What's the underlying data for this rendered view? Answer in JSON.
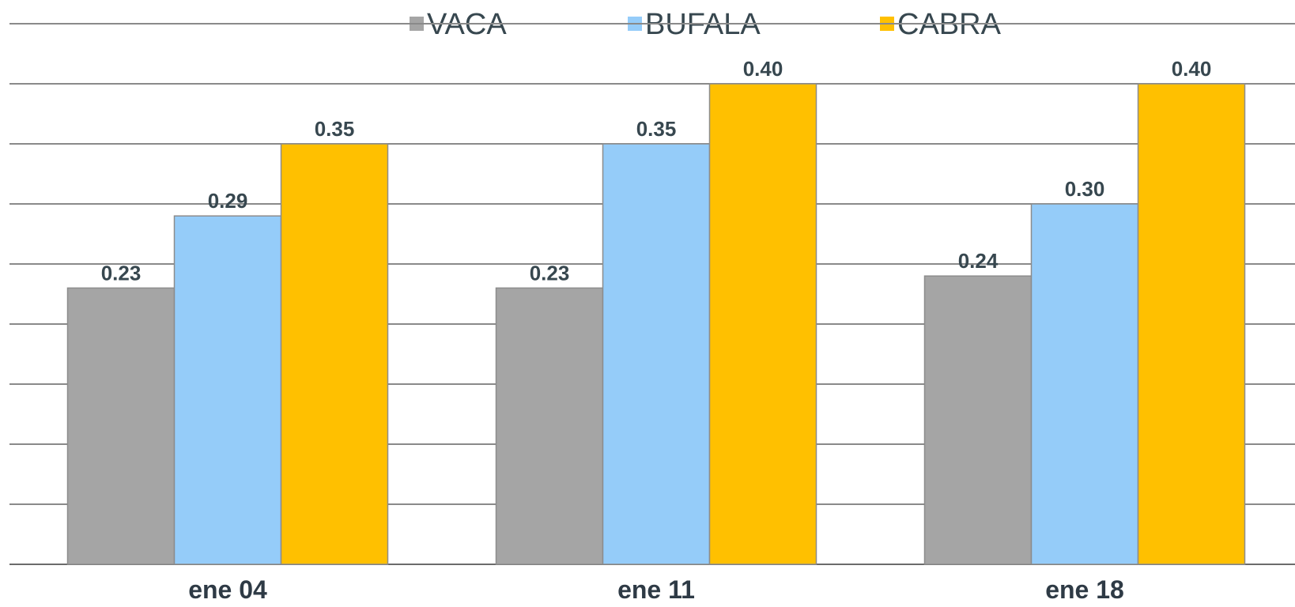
{
  "chart_data": {
    "type": "bar",
    "categories": [
      "ene 04",
      "ene 11",
      "ene 18"
    ],
    "series": [
      {
        "name": "VACA",
        "values": [
          0.23,
          0.23,
          0.24
        ],
        "labels": [
          "0.23",
          "0.23",
          "0.24"
        ],
        "color": "#a5a5a5"
      },
      {
        "name": "BUFALA",
        "values": [
          0.29,
          0.35,
          0.3
        ],
        "labels": [
          "0.29",
          "0.35",
          "0.30"
        ],
        "color": "#95ccf9"
      },
      {
        "name": "CABRA",
        "values": [
          0.35,
          0.4,
          0.4
        ],
        "labels": [
          "0.35",
          "0.40",
          "0.40"
        ],
        "color": "#ffc000"
      }
    ],
    "ylim": [
      0,
      0.4
    ],
    "grid": true,
    "legend": "top",
    "title": "",
    "xlabel": "",
    "ylabel": ""
  }
}
